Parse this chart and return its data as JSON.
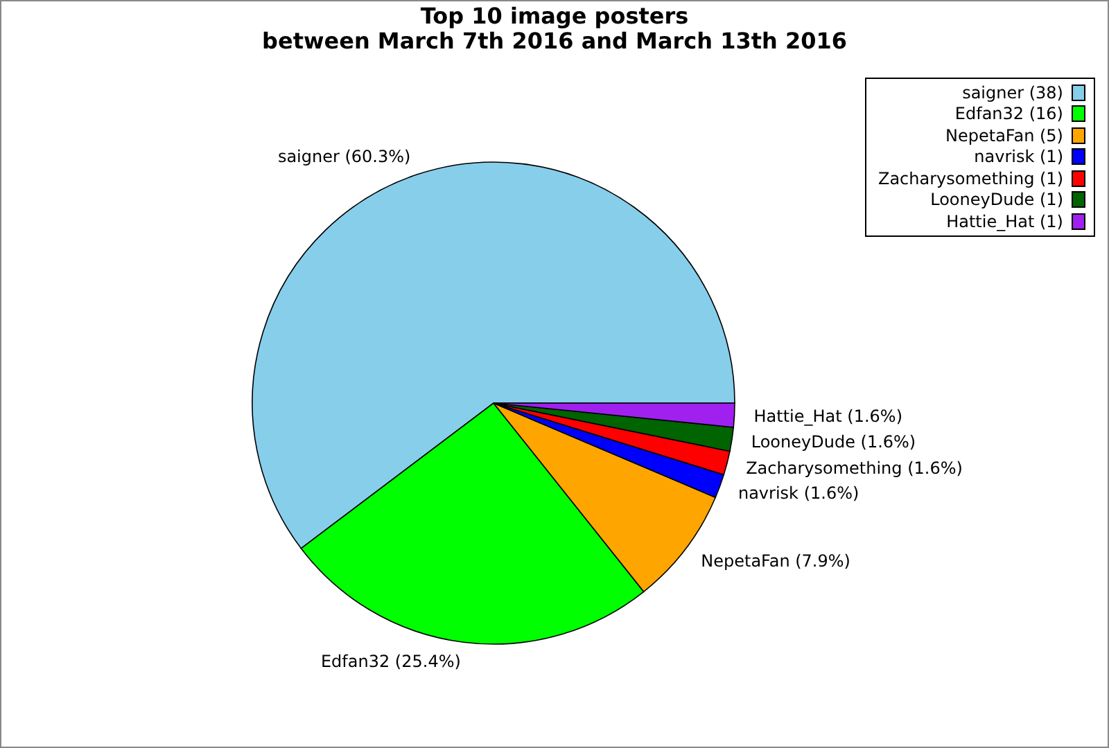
{
  "chart_data": {
    "type": "pie",
    "title": "Top 10 image posters",
    "subtitle": "between March 7th 2016 and March 13th 2016",
    "categories": [
      "saigner (38)",
      "Edfan32 (16)",
      "NepetaFan (5)",
      "navrisk (1)",
      "Zacharysomething (1)",
      "LooneyDude (1)",
      "Hattie_Hat (1)"
    ],
    "values": [
      60.3,
      25.4,
      7.9,
      1.6,
      1.6,
      1.6,
      1.6
    ],
    "value_labels": [
      "saigner (60.3%)",
      "Edfan32 (25.4%)",
      "NepetaFan (7.9%)",
      "navrisk (1.6%)",
      "Zacharysomething (1.6%)",
      "LooneyDude (1.6%)",
      "Hattie_Hat (1.6%)"
    ],
    "colors": [
      "#87ceeb",
      "#00ff00",
      "#ffa500",
      "#0000ff",
      "#ff0000",
      "#006400",
      "#a020f0"
    ],
    "legend": "top right"
  }
}
